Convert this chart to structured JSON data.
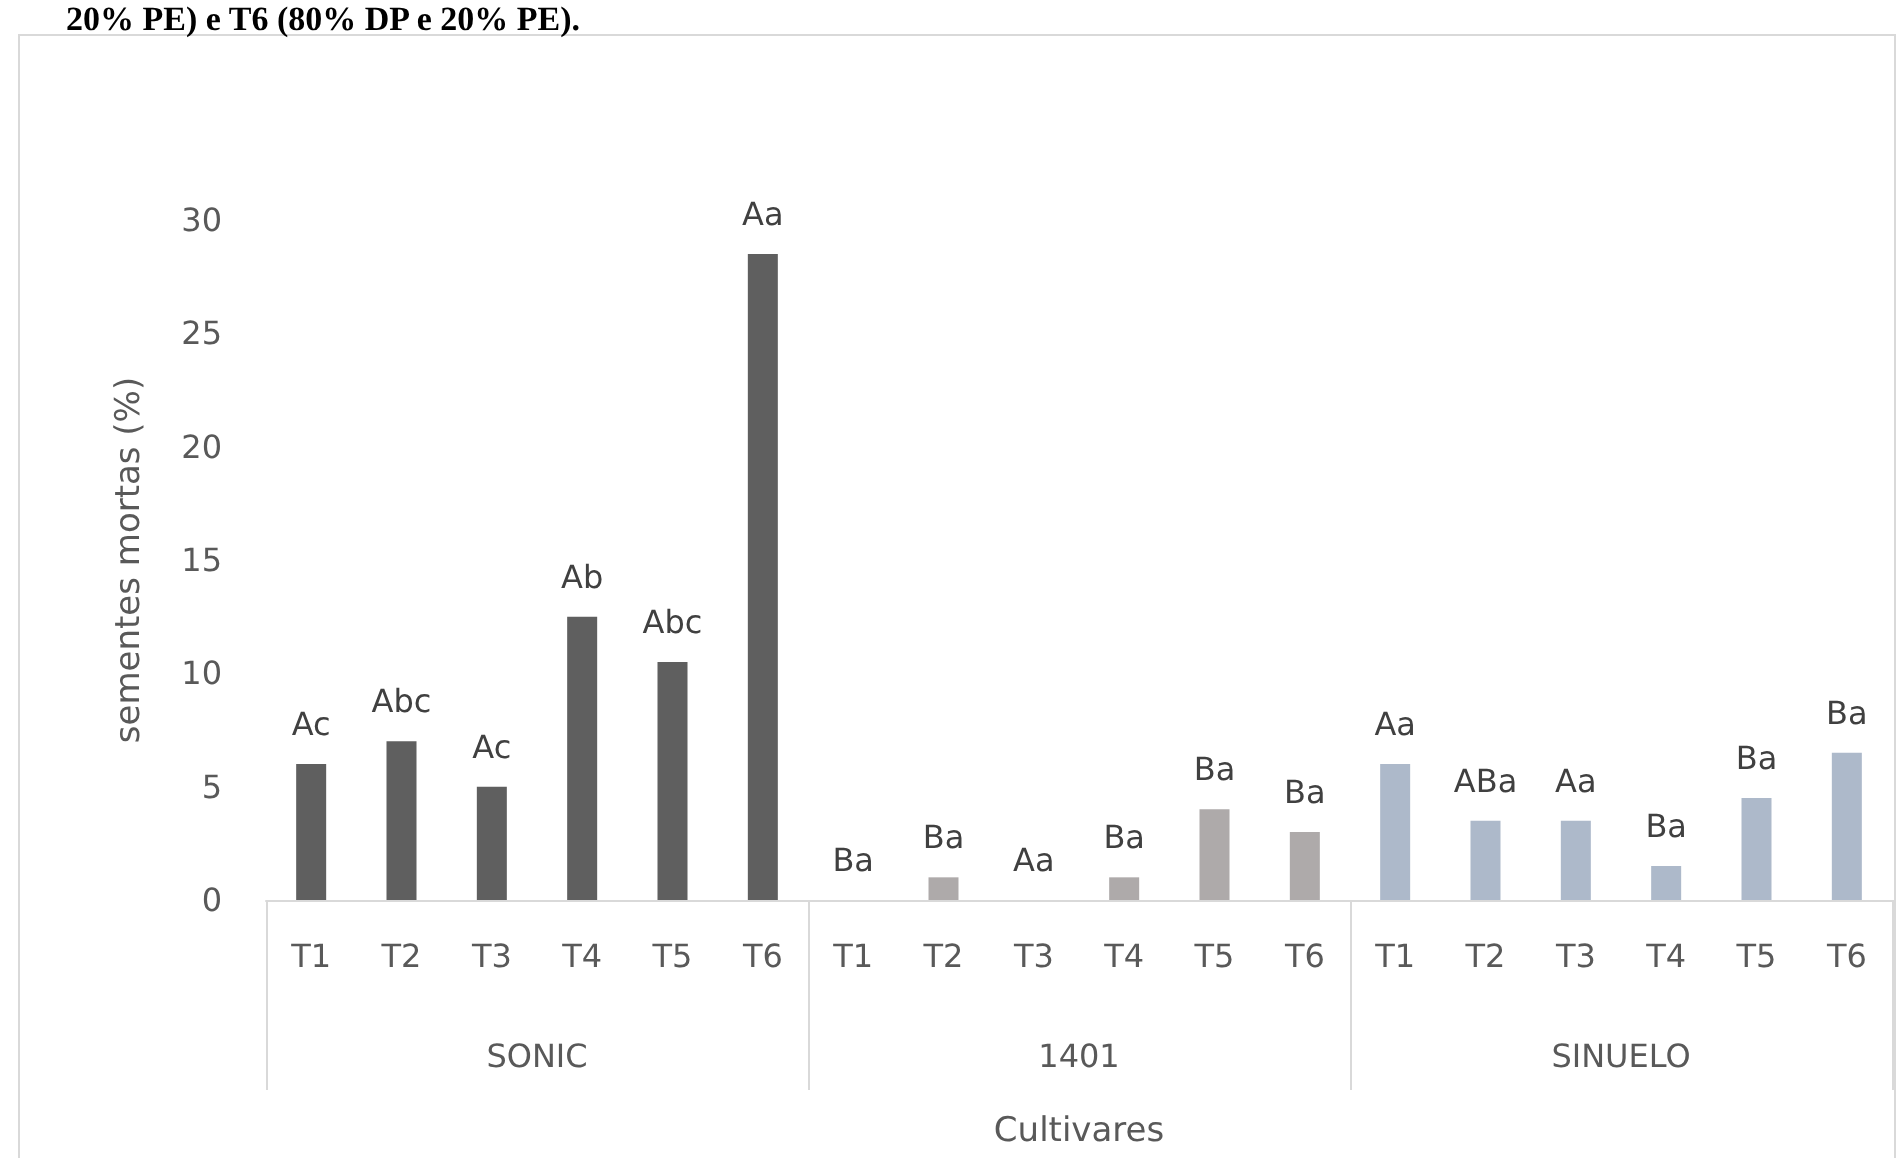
{
  "chart_data": {
    "type": "bar",
    "title": "20% PE) e T6 (80% DP e 20% PE).",
    "xlabel": "Cultivares",
    "ylabel": "sementes mortas (%)",
    "categories": [
      "T1",
      "T2",
      "T3",
      "T4",
      "T5",
      "T6",
      "T1",
      "T2",
      "T3",
      "T4",
      "T5",
      "T6",
      "T1",
      "T2",
      "T3",
      "T4",
      "T5",
      "T6"
    ],
    "annotations": [
      "SONIC",
      "1401",
      "SINUELO"
    ],
    "values": [
      6,
      7,
      5,
      12.5,
      10.5,
      28.5,
      0,
      1,
      0,
      1,
      4,
      3,
      6,
      3.5,
      3.5,
      1.5,
      4.5,
      6.5
    ],
    "colors": [
      "#5f5f5f",
      "#5f5f5f",
      "#5f5f5f",
      "#5f5f5f",
      "#5f5f5f",
      "#5f5f5f",
      "#aeaaaa",
      "#aeaaaa",
      "#aeaaaa",
      "#aeaaaa",
      "#aeaaaa",
      "#aeaaaa",
      "#adb9ca",
      "#adb9ca",
      "#adb9ca",
      "#adb9ca",
      "#adb9ca",
      "#adb9ca"
    ],
    "value_labels": [
      "Ac",
      "Abc",
      "Ac",
      "Ab",
      "Abc",
      "Aa",
      "Ba",
      "Ba",
      "Aa",
      "Ba",
      "Ba",
      "Ba",
      "Aa",
      "ABa",
      "Aa",
      "Ba",
      "Ba",
      "Ba"
    ],
    "ylim": [
      0,
      30
    ],
    "yticks": [
      0,
      5,
      10,
      15,
      20,
      25,
      30
    ],
    "grid": false
  }
}
